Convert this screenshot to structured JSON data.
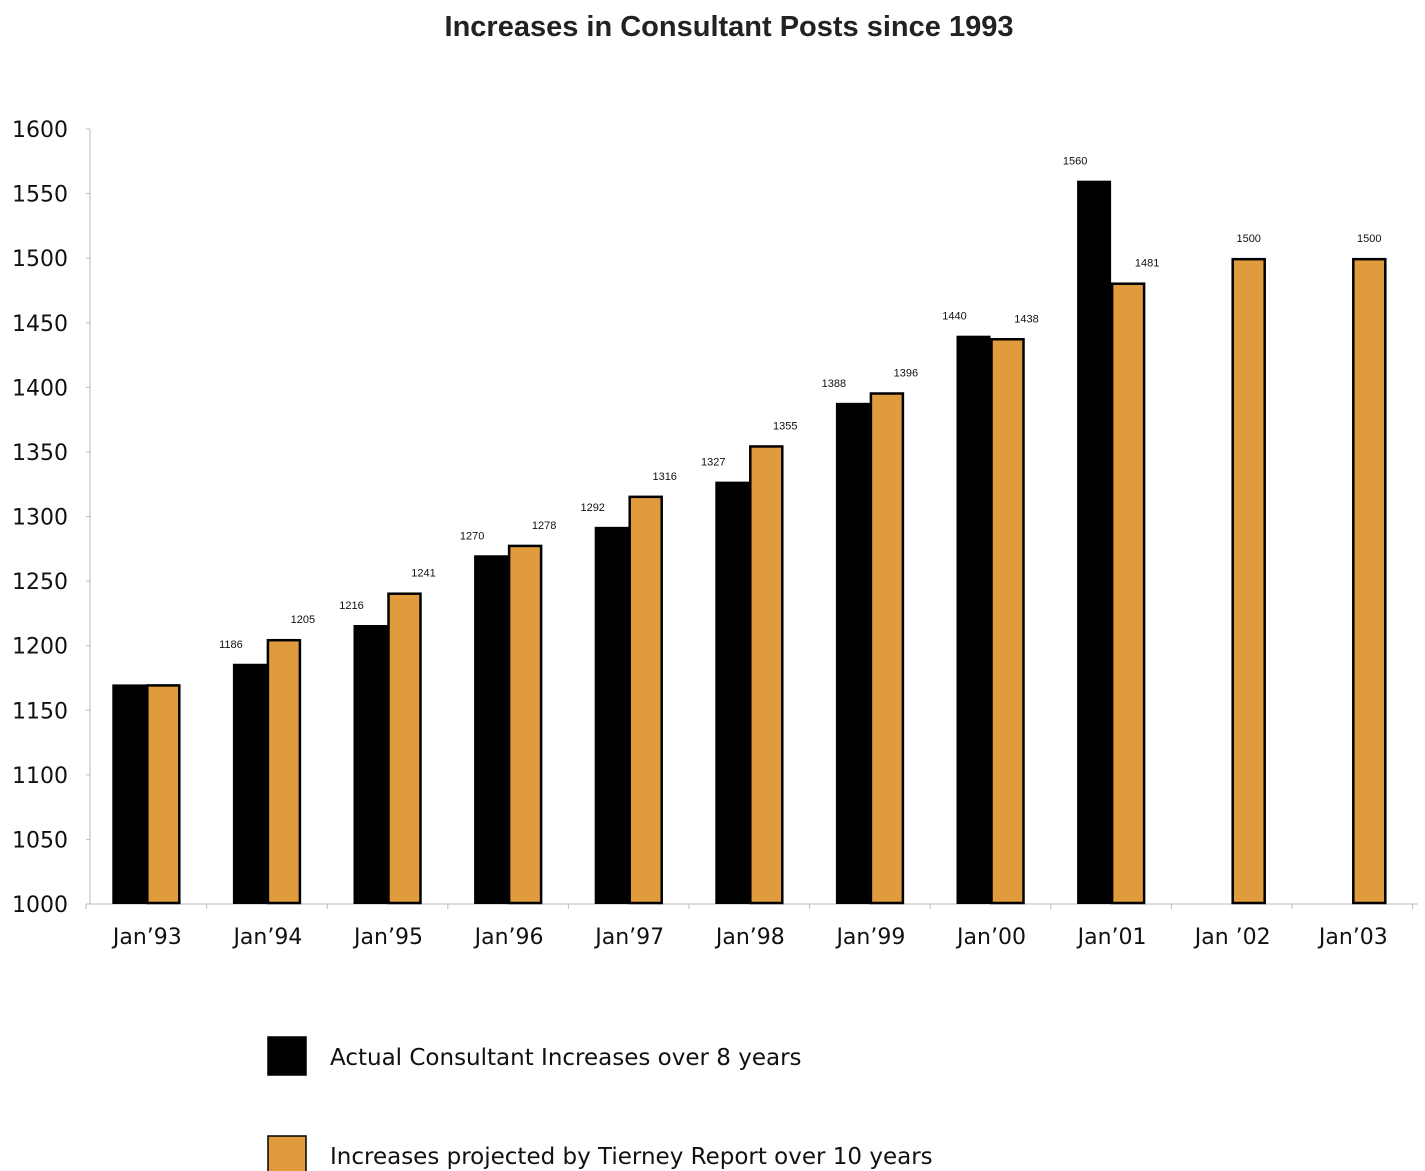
{
  "chart_data": {
    "type": "bar",
    "title": "Increases in Consultant Posts since 1993",
    "xlabel": "",
    "ylabel": "",
    "categories": [
      "Jan’93",
      "Jan’94",
      "Jan’95",
      "Jan’96",
      "Jan’97",
      "Jan’98",
      "Jan’99",
      "Jan’00",
      "Jan’01",
      "Jan ’02",
      "Jan’03"
    ],
    "ylim": [
      1000,
      1600
    ],
    "yticks": [
      1000,
      1050,
      1100,
      1150,
      1200,
      1250,
      1300,
      1350,
      1400,
      1450,
      1500,
      1550,
      1600
    ],
    "grid": false,
    "legend_position": "bottom",
    "series": [
      {
        "name": "Actual Consultant Increases over 8 years",
        "color": "#000000",
        "values": [
          1170,
          1186,
          1216,
          1270,
          1292,
          1327,
          1388,
          1440,
          1560,
          null,
          null
        ],
        "data_labels": [
          "",
          "1186",
          "1216",
          "1270",
          "1292",
          "1327",
          "1388",
          "1440",
          "1560",
          "",
          ""
        ]
      },
      {
        "name": "Increases projected by Tierney Report over 10 years",
        "color": "#E09B3D",
        "values": [
          1170,
          1205,
          1241,
          1278,
          1316,
          1355,
          1396,
          1438,
          1481,
          1500,
          1500
        ],
        "data_labels": [
          "",
          "1205",
          "1241",
          "1278",
          "1316",
          "1355",
          "1396",
          "1438",
          "1481",
          "1500",
          "1500"
        ]
      }
    ]
  }
}
